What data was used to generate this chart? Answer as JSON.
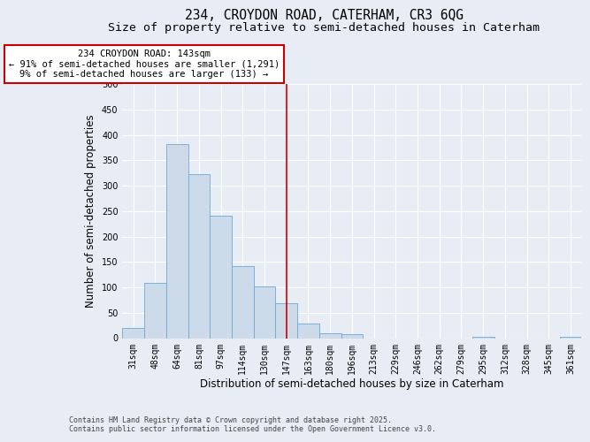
{
  "title_line1": "234, CROYDON ROAD, CATERHAM, CR3 6QG",
  "title_line2": "Size of property relative to semi-detached houses in Caterham",
  "xlabel": "Distribution of semi-detached houses by size in Caterham",
  "ylabel": "Number of semi-detached properties",
  "footer": "Contains HM Land Registry data © Crown copyright and database right 2025.\nContains public sector information licensed under the Open Government Licence v3.0.",
  "categories": [
    "31sqm",
    "48sqm",
    "64sqm",
    "81sqm",
    "97sqm",
    "114sqm",
    "130sqm",
    "147sqm",
    "163sqm",
    "180sqm",
    "196sqm",
    "213sqm",
    "229sqm",
    "246sqm",
    "262sqm",
    "279sqm",
    "295sqm",
    "312sqm",
    "328sqm",
    "345sqm",
    "361sqm"
  ],
  "values": [
    20,
    108,
    382,
    323,
    241,
    141,
    101,
    68,
    29,
    10,
    7,
    0,
    0,
    0,
    0,
    0,
    2,
    0,
    0,
    0,
    3
  ],
  "bar_color": "#ccdaea",
  "bar_edge_color": "#6aaad4",
  "vline_color": "#cc0000",
  "vline_x_index": 7,
  "annotation_title": "234 CROYDON ROAD: 143sqm",
  "annotation_line1": "← 91% of semi-detached houses are smaller (1,291)",
  "annotation_line2": "9% of semi-detached houses are larger (133) →",
  "annotation_box_color": "white",
  "annotation_box_edge_color": "#cc0000",
  "ylim": [
    0,
    500
  ],
  "yticks": [
    0,
    50,
    100,
    150,
    200,
    250,
    300,
    350,
    400,
    450,
    500
  ],
  "bg_color": "#e8edf5",
  "plot_bg_color": "#e8edf5",
  "grid_color": "#ffffff",
  "title_fontsize": 10.5,
  "subtitle_fontsize": 9.5,
  "axis_label_fontsize": 8.5,
  "tick_fontsize": 7,
  "annotation_fontsize": 7.5,
  "footer_fontsize": 6
}
